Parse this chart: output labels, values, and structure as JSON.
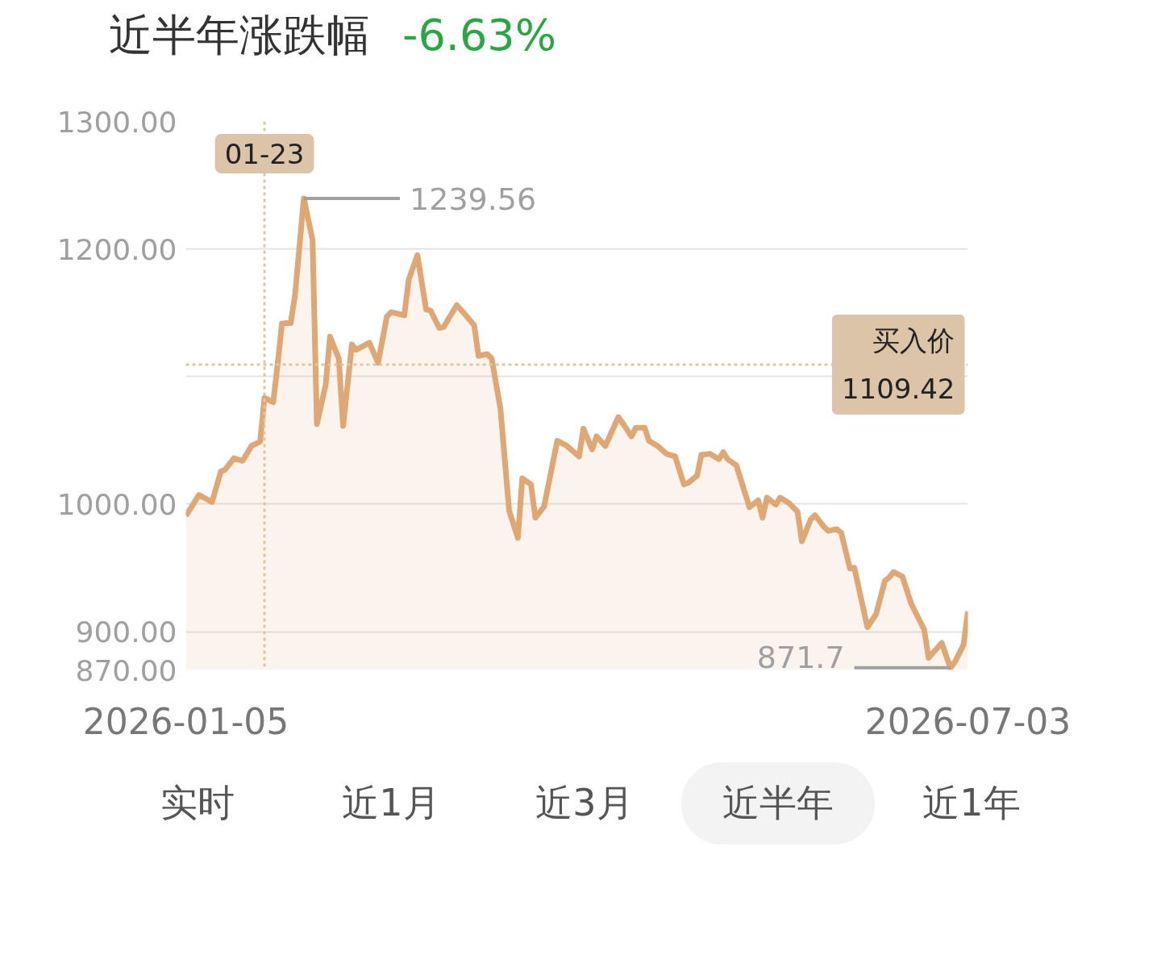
{
  "chart_data": {
    "type": "area",
    "title": "近半年涨跌幅",
    "subtitle": "-6.63%",
    "x": [
      "2026-01-05",
      "2026-01-08",
      "2026-01-11",
      "2026-01-13",
      "2026-01-14",
      "2026-01-16",
      "2026-01-18",
      "2026-01-20",
      "2026-01-22",
      "2026-01-23",
      "2026-01-25",
      "2026-01-26",
      "2026-01-27",
      "2026-01-29",
      "2026-01-30",
      "2026-02-01",
      "2026-02-03",
      "2026-02-04",
      "2026-02-06",
      "2026-02-07",
      "2026-02-09",
      "2026-02-10",
      "2026-02-12",
      "2026-02-13",
      "2026-02-16",
      "2026-02-18",
      "2026-02-20",
      "2026-02-21",
      "2026-02-24",
      "2026-02-25",
      "2026-02-27",
      "2026-03-01",
      "2026-03-02",
      "2026-03-04",
      "2026-03-05",
      "2026-03-08",
      "2026-03-10",
      "2026-03-12",
      "2026-03-13",
      "2026-03-15",
      "2026-03-16",
      "2026-03-18",
      "2026-03-20",
      "2026-03-22",
      "2026-03-23",
      "2026-03-25",
      "2026-03-26",
      "2026-03-28",
      "2026-03-31",
      "2026-04-02",
      "2026-04-05",
      "2026-04-06",
      "2026-04-08",
      "2026-04-09",
      "2026-04-11",
      "2026-04-12",
      "2026-04-14",
      "2026-04-15",
      "2026-04-17",
      "2026-04-18",
      "2026-04-20",
      "2026-04-21",
      "2026-04-23",
      "2026-04-25",
      "2026-04-27",
      "2026-04-29",
      "2026-04-30",
      "2026-05-02",
      "2026-05-03",
      "2026-05-05",
      "2026-05-07",
      "2026-05-08",
      "2026-05-09",
      "2026-05-11",
      "2026-05-14",
      "2026-05-16",
      "2026-05-17",
      "2026-05-18",
      "2026-05-20",
      "2026-05-21",
      "2026-05-23",
      "2026-05-25",
      "2026-05-26",
      "2026-05-28",
      "2026-05-29",
      "2026-05-31",
      "2026-06-01",
      "2026-06-03",
      "2026-06-04",
      "2026-06-06",
      "2026-06-07",
      "2026-06-10",
      "2026-06-12",
      "2026-06-14",
      "2026-06-15",
      "2026-06-16",
      "2026-06-18",
      "2026-06-20",
      "2026-06-21",
      "2026-06-23",
      "2026-06-24",
      "2026-06-27",
      "2026-06-29",
      "2026-06-30",
      "2026-07-02",
      "2026-07-03"
    ],
    "series": [
      {
        "color": "#dea774",
        "values": [
          990.7,
          1007.1,
          1001.6,
          1025.6,
          1027.0,
          1035.9,
          1033.9,
          1045.5,
          1049.0,
          1083.3,
          1079.8,
          1109.4,
          1141.6,
          1142.0,
          1164.2,
          1239.56,
          1207.4,
          1062.7,
          1093.5,
          1131.3,
          1114.1,
          1061.3,
          1125.1,
          1121.0,
          1126.5,
          1110.7,
          1147.0,
          1150.5,
          1148.0,
          1175.9,
          1195.1,
          1152.5,
          1151.8,
          1138.1,
          1138.8,
          1156.0,
          1148.4,
          1140.2,
          1116.2,
          1117.6,
          1114.1,
          1075.0,
          994.8,
          973.5,
          1020.2,
          1015.4,
          989.3,
          998.2,
          1049.6,
          1046.2,
          1037.3,
          1059.2,
          1042.8,
          1053.1,
          1045.5,
          1053.1,
          1068.2,
          1063.4,
          1053.1,
          1059.9,
          1059.9,
          1049.6,
          1045.5,
          1039.4,
          1037.3,
          1015.4,
          1016.7,
          1022.2,
          1038.7,
          1039.4,
          1035.2,
          1040.7,
          1035.2,
          1030.4,
          997.5,
          1003.0,
          989.3,
          1005.1,
          999.6,
          1005.1,
          1000.9,
          994.1,
          970.8,
          987.9,
          991.3,
          982.4,
          979.0,
          980.4,
          977.6,
          949.5,
          950.2,
          903.5,
          913.8,
          939.9,
          942.6,
          946.8,
          943.3,
          922.1,
          915.2,
          901.5,
          879.5,
          891.2,
          871.7,
          876.1,
          889.8,
          915.9
        ]
      }
    ],
    "xlim": [
      "2026-01-05",
      "2026-07-03"
    ],
    "xticks": [
      {
        "value": "2026-01-05",
        "label": "2026-01-05"
      },
      {
        "value": "2026-07-03",
        "label": "2026-07-03"
      }
    ],
    "ylim": [
      870,
      1300
    ],
    "yticks": [
      {
        "value": 870,
        "label": "870.00"
      },
      {
        "value": 900,
        "label": "900.00"
      },
      {
        "value": 1000,
        "label": "1000.00"
      },
      {
        "value": 1100,
        "label": null
      },
      {
        "value": 1200,
        "label": "1200.00"
      },
      {
        "value": 1300,
        "label": "1300.00"
      }
    ],
    "grid": "y",
    "ref_lines": [
      {
        "axis": "x",
        "value": "2026-01-23",
        "label": "01-23",
        "color": "#d8cb9c",
        "line_style": "dotted"
      },
      {
        "axis": "y",
        "value": 1109.42,
        "label": "买入价\n1109.42",
        "color": "#d8cb9c",
        "line_style": "dotted"
      }
    ],
    "annotations": [
      {
        "text": "1239.56",
        "x": "2026-02-01",
        "y": 1239.56
      },
      {
        "text": "871.7",
        "x": "2026-06-29",
        "y": 871.7
      },
      "实时",
      "近1月",
      "近3月",
      "近半年",
      "近1年"
    ]
  }
}
